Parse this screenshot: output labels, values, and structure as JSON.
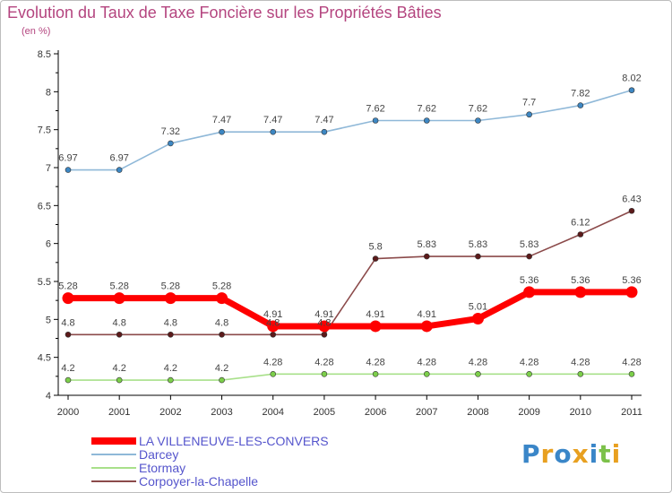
{
  "chart_data": {
    "type": "line",
    "title": "Evolution du Taux de Taxe Foncière sur les Propriétés Bâties",
    "unit": "(en %)",
    "x": [
      "2000",
      "2001",
      "2002",
      "2003",
      "2004",
      "2005",
      "2006",
      "2007",
      "2008",
      "2009",
      "2010",
      "2011"
    ],
    "ylim": [
      4,
      8.5
    ],
    "yticks": [
      "4",
      "4.5",
      "5",
      "5.5",
      "6",
      "6.5",
      "7",
      "7.5",
      "8",
      "8.5"
    ],
    "grid": false,
    "legend": "bottom-left",
    "series": [
      {
        "name": "Darcey",
        "color": "#8fb8d8",
        "marker": "#3d87c3",
        "values": [
          6.97,
          6.97,
          7.32,
          7.47,
          7.47,
          7.47,
          7.62,
          7.62,
          7.62,
          7.7,
          7.82,
          8.02
        ],
        "labels": [
          "6.97",
          "6.97",
          "7.32",
          "7.47",
          "7.47",
          "7.47",
          "7.62",
          "7.62",
          "7.62",
          "7.7",
          "7.82",
          "8.02"
        ]
      },
      {
        "name": "Corpoyer-la-Chapelle",
        "color": "#8b4a4a",
        "marker": "#5c1a1a",
        "values": [
          4.8,
          4.8,
          4.8,
          4.8,
          4.8,
          4.8,
          5.8,
          5.83,
          5.83,
          5.83,
          6.12,
          6.43
        ],
        "labels": [
          "4.8",
          "4.8",
          "4.8",
          "4.8",
          "4.8",
          "4.8",
          "5.8",
          "5.83",
          "5.83",
          "5.83",
          "6.12",
          "6.43"
        ]
      },
      {
        "name": "LA VILLENEUVE-LES-CONVERS",
        "color": "#ff0000",
        "marker": "#ff0000",
        "values": [
          5.28,
          5.28,
          5.28,
          5.28,
          4.91,
          4.91,
          4.91,
          4.91,
          5.01,
          5.36,
          5.36,
          5.36
        ],
        "labels": [
          "5.28",
          "5.28",
          "5.28",
          "5.28",
          "4.91",
          "4.91",
          "4.91",
          "4.91",
          "5.01",
          "5.36",
          "5.36",
          "5.36"
        ]
      },
      {
        "name": "Etormay",
        "color": "#a8e08a",
        "marker": "#7ccf4a",
        "values": [
          4.2,
          4.2,
          4.2,
          4.2,
          4.28,
          4.28,
          4.28,
          4.28,
          4.28,
          4.28,
          4.28,
          4.28
        ],
        "labels": [
          "4.2",
          "4.2",
          "4.2",
          "4.2",
          "4.28",
          "4.28",
          "4.28",
          "4.28",
          "4.28",
          "4.28",
          "4.28",
          "4.28"
        ]
      }
    ],
    "legend_entries": [
      {
        "name": "LA VILLENEUVE-LES-CONVERS",
        "color": "#ff0000"
      },
      {
        "name": "Darcey",
        "color": "#8fb8d8"
      },
      {
        "name": "Etormay",
        "color": "#a8e08a"
      },
      {
        "name": "Corpoyer-la-Chapelle",
        "color": "#8b4a4a"
      }
    ]
  },
  "logo": {
    "text": "Proxiti"
  }
}
